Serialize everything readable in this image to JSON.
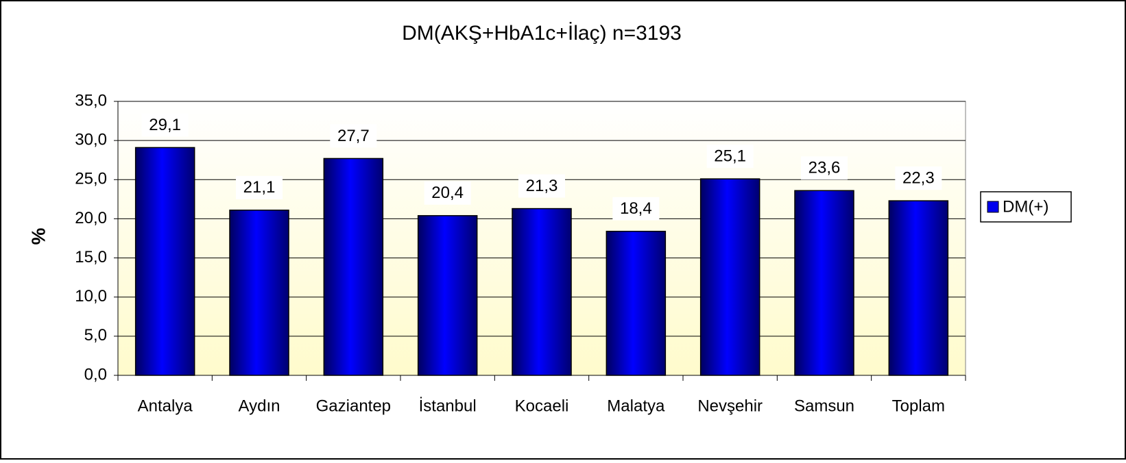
{
  "chart_data": {
    "type": "bar",
    "title": "DM(AKŞ+HbA1c+İlaç) n=3193",
    "y_label": "%",
    "categories": [
      "Antalya",
      "Aydın",
      "Gaziantep",
      "İstanbul",
      "Kocaeli",
      "Malatya",
      "Nevşehir",
      "Samsun",
      "Toplam"
    ],
    "series": [
      {
        "name": "DM(+)",
        "color": "#0000ee",
        "values": [
          29.1,
          21.1,
          27.7,
          20.4,
          21.3,
          18.4,
          25.1,
          23.6,
          22.3
        ],
        "value_labels": [
          "29,1",
          "21,1",
          "27,7",
          "20,4",
          "21,3",
          "18,4",
          "25,1",
          "23,6",
          "22,3"
        ]
      }
    ],
    "ylim": [
      0,
      35
    ],
    "yticks": [
      {
        "value": 0,
        "label": "0,0"
      },
      {
        "value": 5,
        "label": "5,0"
      },
      {
        "value": 10,
        "label": "10,0"
      },
      {
        "value": 15,
        "label": "15,0"
      },
      {
        "value": 20,
        "label": "20,0"
      },
      {
        "value": 25,
        "label": "25,0"
      },
      {
        "value": 30,
        "label": "30,0"
      },
      {
        "value": 35,
        "label": "35,0"
      }
    ],
    "grid": true,
    "legend": "right"
  }
}
